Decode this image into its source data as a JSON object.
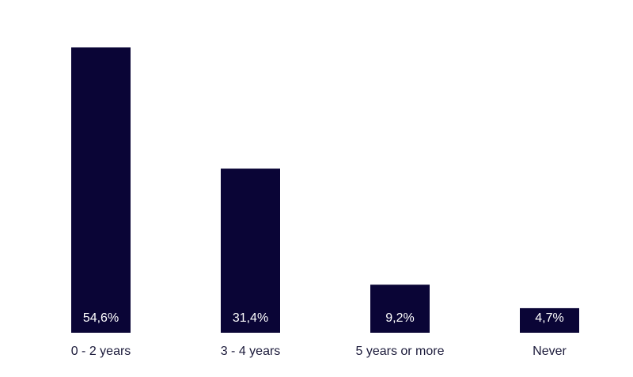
{
  "chart_data": {
    "type": "bar",
    "categories": [
      "0 - 2 years",
      "3 - 4 years",
      "5 years or more",
      "Never"
    ],
    "values": [
      54.6,
      31.4,
      9.2,
      4.7
    ],
    "value_labels": [
      "54,6%",
      "31,4%",
      "9,2%",
      "4,7%"
    ],
    "color": "#0a0536"
  }
}
